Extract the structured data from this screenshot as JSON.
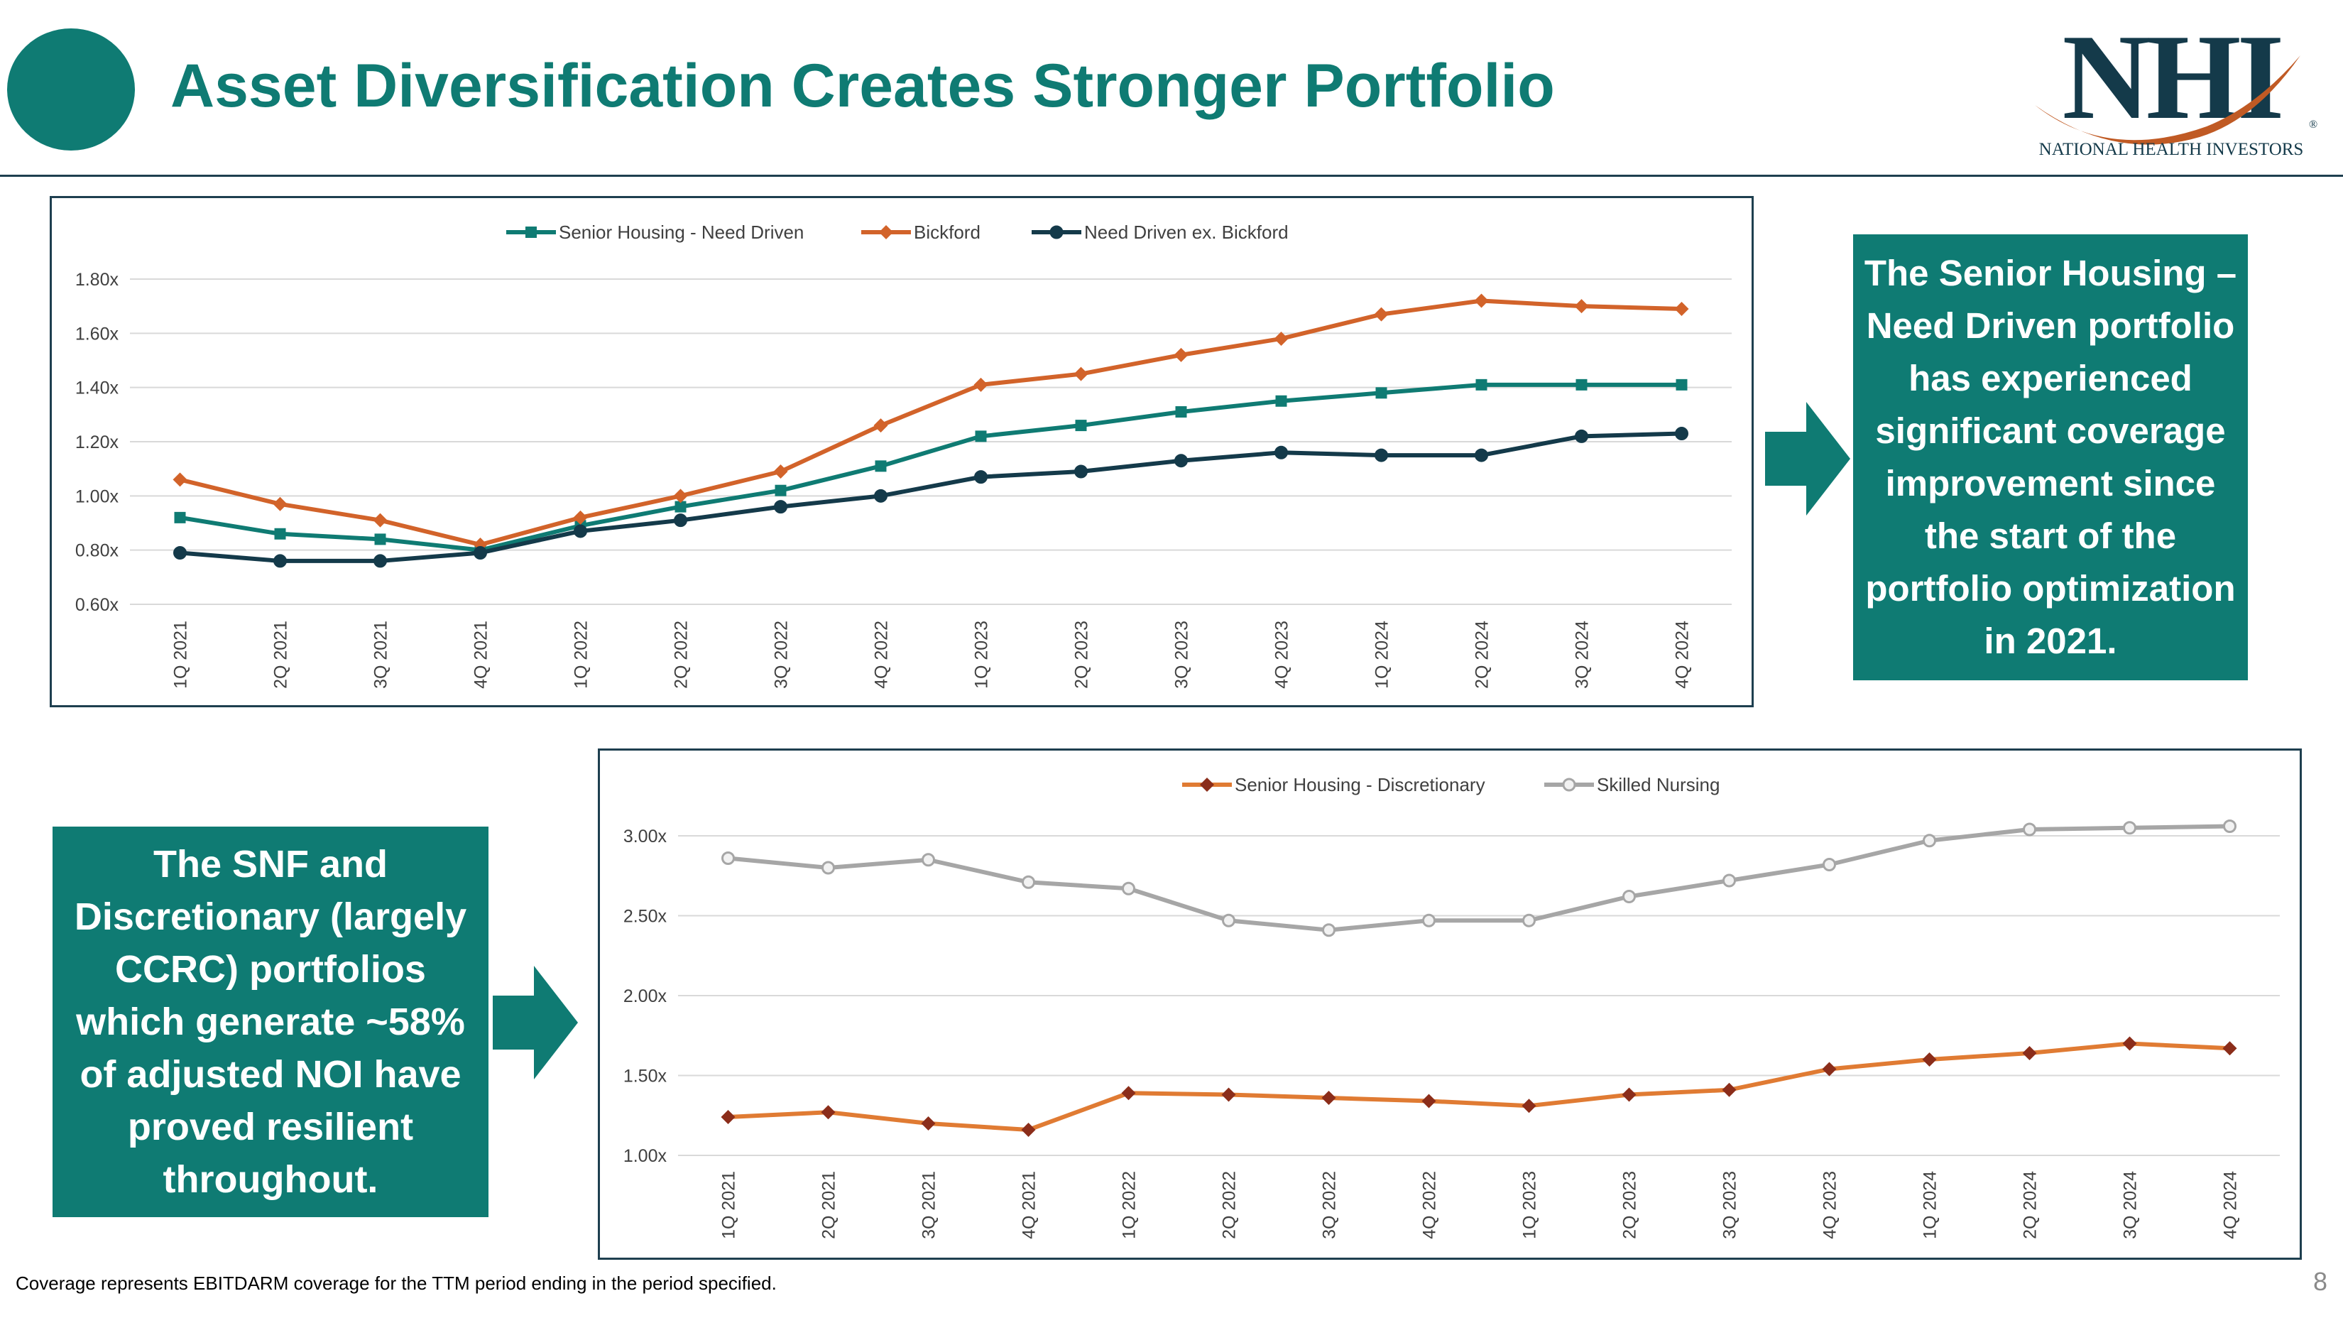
{
  "header": {
    "title": "Asset Diversification Creates Stronger Portfolio"
  },
  "logo": {
    "letters": "NHI",
    "tagline": "NATIONAL HEALTH INVESTORS",
    "reg": "®"
  },
  "callouts": {
    "top": [
      "The Senior Housing –",
      "Need Driven portfolio",
      "has experienced",
      "significant coverage",
      "improvement since",
      "the start of the",
      "portfolio optimization",
      "in 2021."
    ],
    "bottom": [
      "The SNF and",
      "Discretionary (largely",
      "CCRC) portfolios",
      "which generate ~58%",
      "of adjusted NOI have",
      "proved resilient",
      "throughout."
    ]
  },
  "footnote": "Coverage represents EBITDARM coverage for the TTM period ending in the period specified.",
  "page_number": "8",
  "colors": {
    "teal": "#0f7b73",
    "orange": "#d2632a",
    "navy": "#143a4a",
    "orange_disc": "#e07b33",
    "gray": "#a6a6a6",
    "diamond_dark": "#8b2d1a"
  },
  "chart_data": [
    {
      "type": "line",
      "categories": [
        "1Q 2021",
        "2Q 2021",
        "3Q 2021",
        "4Q 2021",
        "1Q 2022",
        "2Q 2022",
        "3Q 2022",
        "4Q 2022",
        "1Q 2023",
        "2Q 2023",
        "3Q 2023",
        "4Q 2023",
        "1Q 2024",
        "2Q 2024",
        "3Q 2024",
        "4Q 2024"
      ],
      "y_ticks": [
        "1.80x",
        "1.60x",
        "1.40x",
        "1.20x",
        "1.00x",
        "0.80x",
        "0.60x"
      ],
      "ylim": [
        0.6,
        1.8
      ],
      "grid": true,
      "legend_position": "top",
      "series": [
        {
          "name": "Senior Housing - Need Driven",
          "color": "#0f7b73",
          "marker": "square",
          "values": [
            0.92,
            0.86,
            0.84,
            0.8,
            0.89,
            0.96,
            1.02,
            1.11,
            1.22,
            1.26,
            1.31,
            1.35,
            1.38,
            1.41,
            1.41,
            1.41
          ]
        },
        {
          "name": "Bickford",
          "color": "#d2632a",
          "marker": "diamond",
          "values": [
            1.06,
            0.97,
            0.91,
            0.82,
            0.92,
            1.0,
            1.09,
            1.26,
            1.41,
            1.45,
            1.52,
            1.58,
            1.67,
            1.72,
            1.7,
            1.69
          ]
        },
        {
          "name": "Need Driven ex. Bickford",
          "color": "#143a4a",
          "marker": "circle",
          "values": [
            0.79,
            0.76,
            0.76,
            0.79,
            0.87,
            0.91,
            0.96,
            1.0,
            1.07,
            1.09,
            1.13,
            1.16,
            1.15,
            1.15,
            1.22,
            1.23
          ]
        }
      ]
    },
    {
      "type": "line",
      "categories": [
        "1Q 2021",
        "2Q 2021",
        "3Q 2021",
        "4Q 2021",
        "1Q 2022",
        "2Q 2022",
        "3Q 2022",
        "4Q 2022",
        "1Q 2023",
        "2Q 2023",
        "3Q 2023",
        "4Q 2023",
        "1Q 2024",
        "2Q 2024",
        "3Q 2024",
        "4Q 2024"
      ],
      "y_ticks": [
        "3.00x",
        "2.50x",
        "2.00x",
        "1.50x",
        "1.00x"
      ],
      "ylim": [
        1.0,
        3.0
      ],
      "grid": true,
      "legend_position": "top",
      "series": [
        {
          "name": "Senior Housing - Discretionary",
          "color": "#e07b33",
          "marker": "diamond",
          "values": [
            1.24,
            1.27,
            1.2,
            1.16,
            1.39,
            1.38,
            1.36,
            1.34,
            1.31,
            1.38,
            1.41,
            1.54,
            1.6,
            1.64,
            1.7,
            1.67
          ]
        },
        {
          "name": "Skilled Nursing",
          "color": "#a6a6a6",
          "marker": "circle",
          "values": [
            2.86,
            2.8,
            2.85,
            2.71,
            2.67,
            2.47,
            2.41,
            2.47,
            2.47,
            2.62,
            2.72,
            2.82,
            2.97,
            3.04,
            3.05,
            3.06
          ]
        }
      ]
    }
  ]
}
